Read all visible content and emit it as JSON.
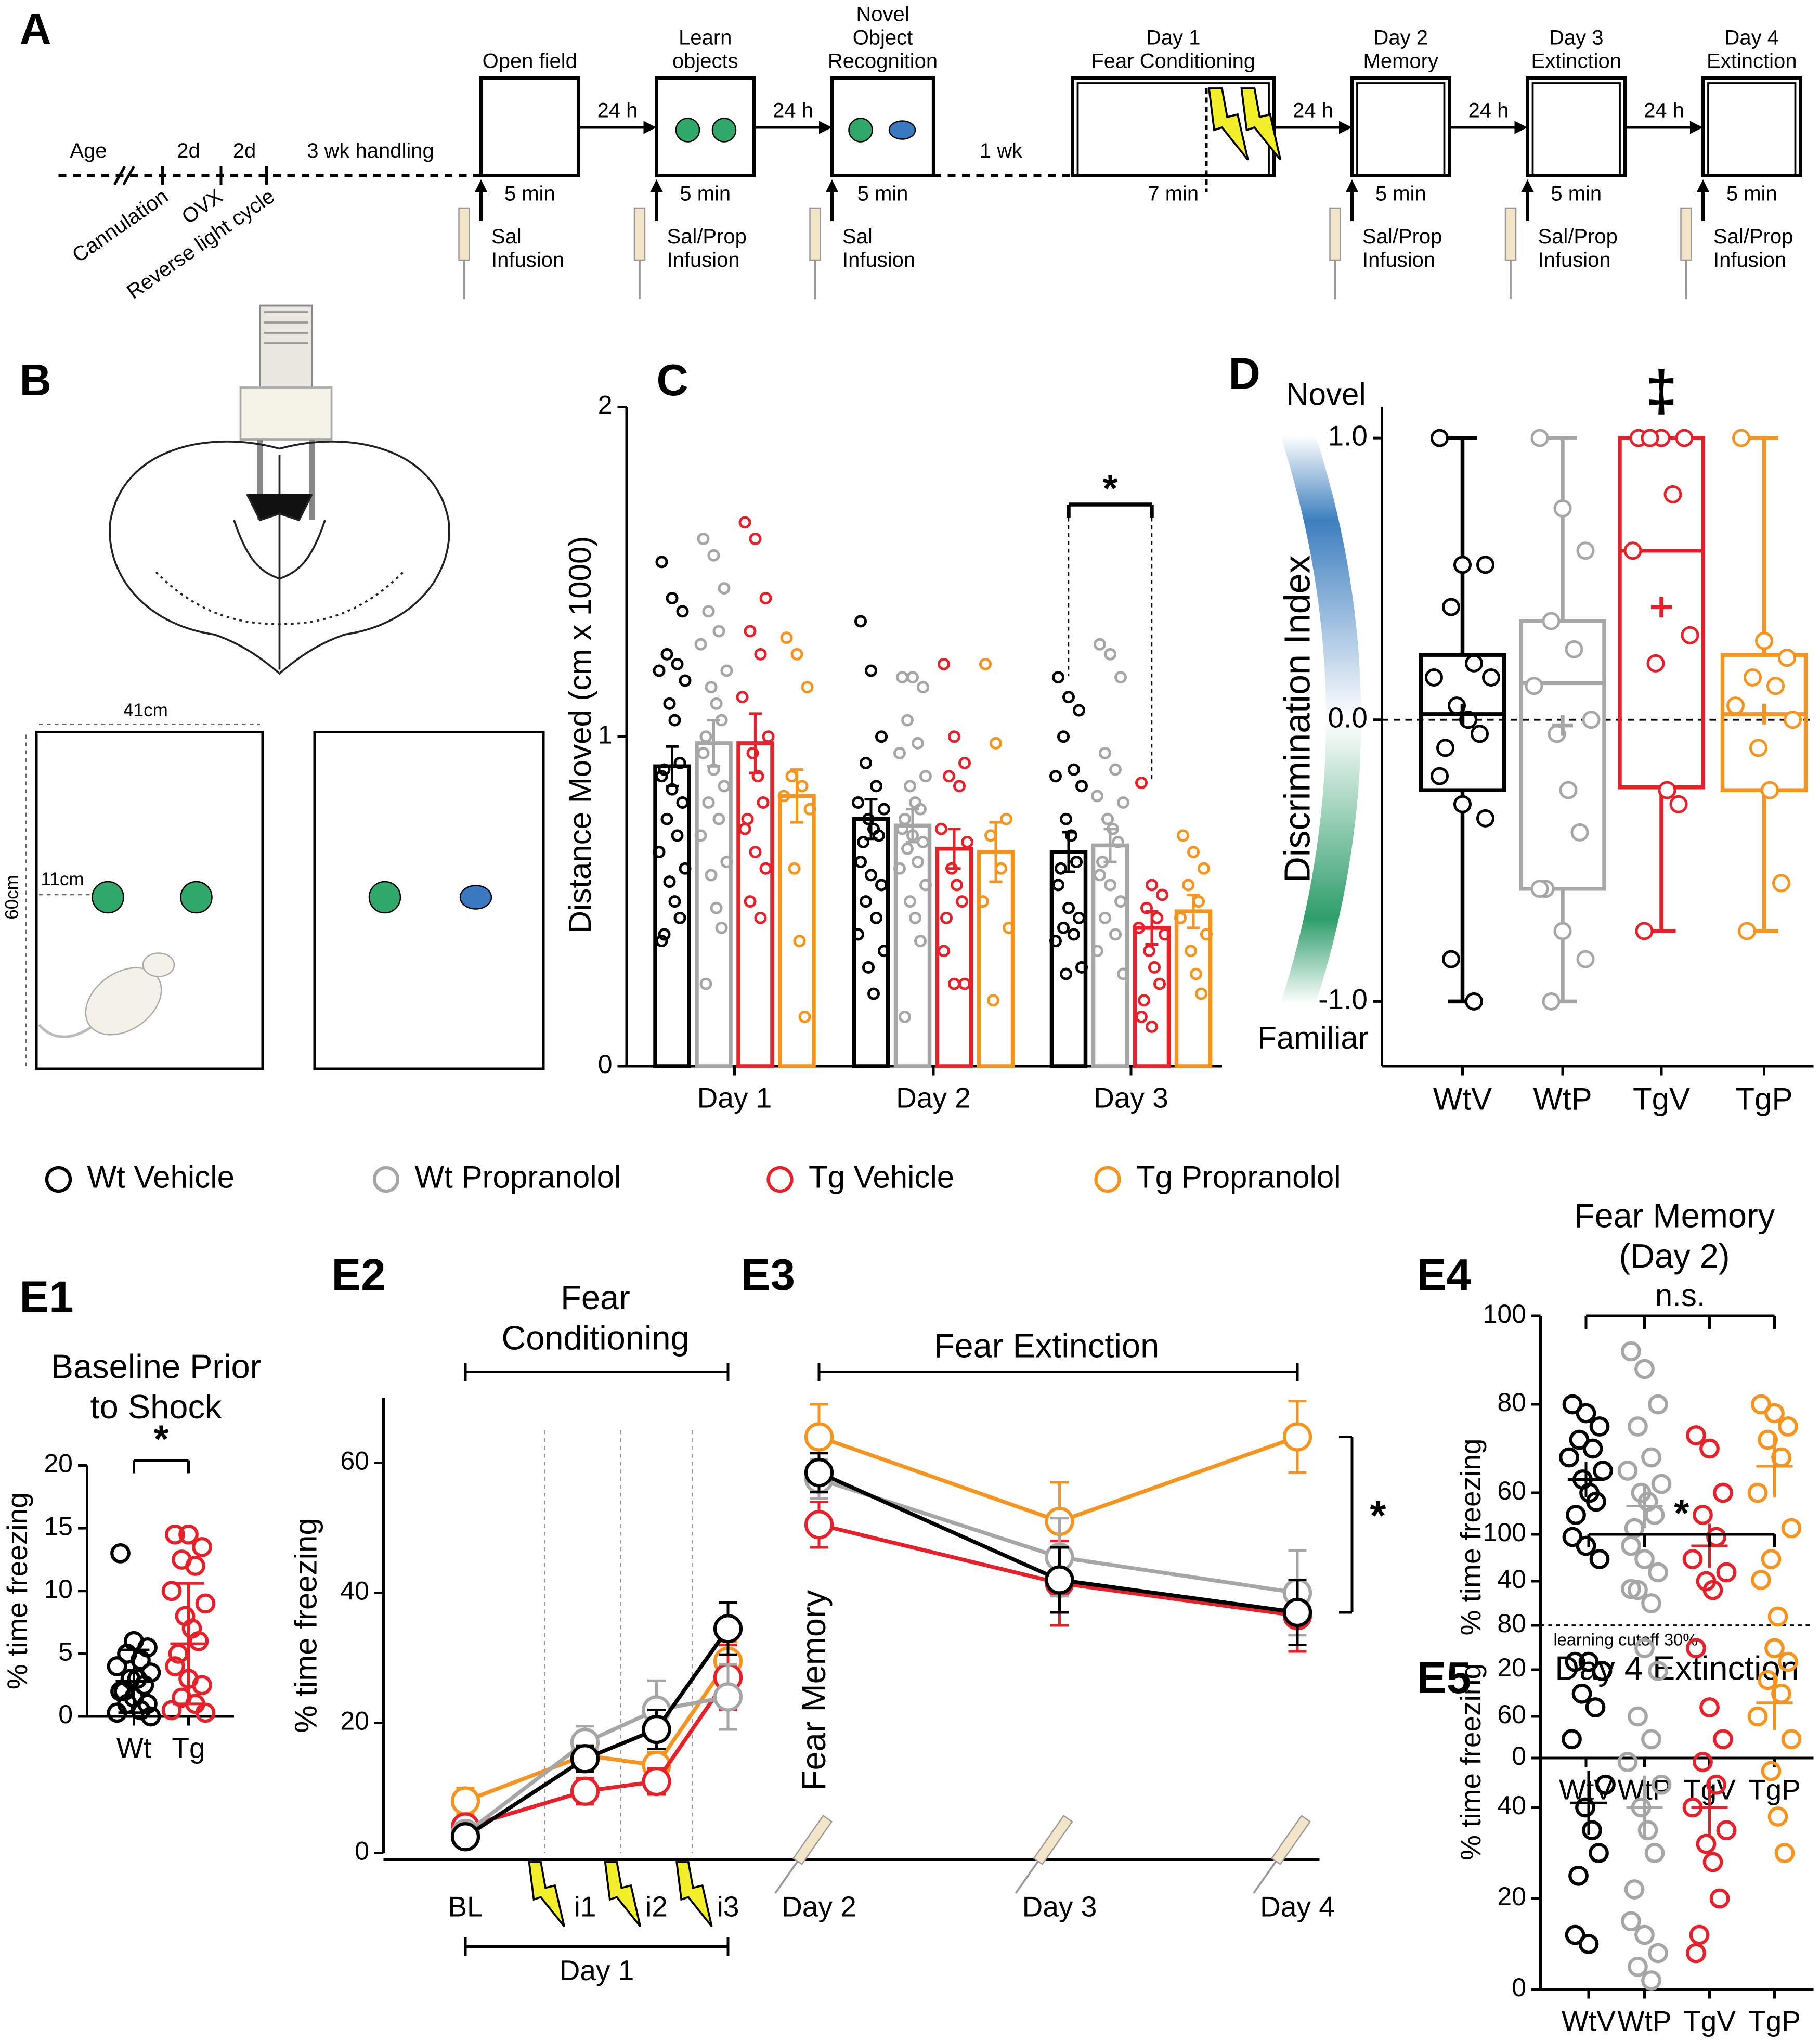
{
  "panel_labels": [
    "A",
    "B",
    "C",
    "D",
    "E1",
    "E2",
    "E3",
    "E4",
    "E5"
  ],
  "timeline": {
    "top_labels": [
      "Age",
      "2d",
      "2d",
      "3 wk handling",
      "1 wk"
    ],
    "rotated_labels": [
      "Cannulation",
      "OVX",
      "Reverse light cycle"
    ],
    "intervals": [
      "24 h",
      "24 h",
      "24 h",
      "24 h",
      "24 h"
    ],
    "boxes": [
      {
        "title": [
          "Open field"
        ],
        "duration": "5 min",
        "infusion": [
          "Sal",
          "Infusion"
        ]
      },
      {
        "title": [
          "Learn",
          "objects"
        ],
        "duration": "5 min",
        "infusion": [
          "Sal/Prop",
          "Infusion"
        ]
      },
      {
        "title": [
          "Novel",
          "Object",
          "Recognition"
        ],
        "duration": "5 min",
        "infusion": [
          "Sal",
          "Infusion"
        ]
      },
      {
        "title": [
          "Day 1",
          "Fear Conditioning"
        ],
        "duration": "7 min"
      },
      {
        "title": [
          "Day 2",
          "Memory"
        ],
        "duration": "5 min",
        "infusion": [
          "Sal/Prop",
          "Infusion"
        ]
      },
      {
        "title": [
          "Day 3",
          "Extinction"
        ],
        "duration": "5 min",
        "infusion": [
          "Sal/Prop",
          "Infusion"
        ]
      },
      {
        "title": [
          "Day 4",
          "Extinction"
        ],
        "duration": "5 min",
        "infusion": [
          "Sal/Prop",
          "Infusion"
        ]
      }
    ]
  },
  "arena": {
    "width": "41cm",
    "height": "60cm",
    "offset": "11cm"
  },
  "legend": [
    {
      "name": "Wt Vehicle",
      "color": "#000000"
    },
    {
      "name": "Wt Propranolol",
      "color": "#a6a6a6"
    },
    {
      "name": "Tg Vehicle",
      "color": "#e8202a"
    },
    {
      "name": "Tg Propranolol",
      "color": "#f7941d"
    }
  ],
  "chart_data": [
    {
      "type": "bar",
      "y_label": "Distance Moved (cm x 1000)",
      "categories": [
        "Day 1",
        "Day 2",
        "Day 3"
      ],
      "ylim": [
        0,
        2
      ],
      "yticks": [
        0,
        1,
        2
      ],
      "annotation": "*",
      "series": [
        {
          "color": "#000000",
          "values": [
            0.91,
            0.75,
            0.65
          ],
          "errors": [
            0.06,
            0.06,
            0.06
          ],
          "points": [
            [
              1.53,
              1.42,
              1.38,
              1.25,
              1.22,
              1.2,
              1.17,
              1.1,
              1.05,
              0.92,
              0.9,
              0.88,
              0.84,
              0.8,
              0.75,
              0.7,
              0.65,
              0.6,
              0.56,
              0.5,
              0.45,
              0.4,
              0.38
            ],
            [
              1.35,
              1.2,
              1.0,
              0.92,
              0.85,
              0.8,
              0.78,
              0.75,
              0.72,
              0.7,
              0.68,
              0.62,
              0.58,
              0.55,
              0.5,
              0.45,
              0.4,
              0.35,
              0.3,
              0.22
            ],
            [
              1.18,
              1.12,
              1.08,
              1.0,
              0.9,
              0.88,
              0.85,
              0.75,
              0.7,
              0.62,
              0.6,
              0.55,
              0.48,
              0.45,
              0.42,
              0.4,
              0.38,
              0.3,
              0.28
            ]
          ]
        },
        {
          "color": "#a6a6a6",
          "values": [
            0.98,
            0.73,
            0.67
          ],
          "errors": [
            0.07,
            0.05,
            0.05
          ],
          "points": [
            [
              1.6,
              1.55,
              1.45,
              1.38,
              1.32,
              1.28,
              1.2,
              1.15,
              1.1,
              1.05,
              1.0,
              0.95,
              0.9,
              0.85,
              0.8,
              0.75,
              0.7,
              0.62,
              0.58,
              0.48,
              0.42,
              0.25
            ],
            [
              1.18,
              1.18,
              1.15,
              1.05,
              0.98,
              0.95,
              0.88,
              0.85,
              0.8,
              0.78,
              0.75,
              0.72,
              0.7,
              0.68,
              0.66,
              0.62,
              0.6,
              0.55,
              0.5,
              0.45,
              0.38,
              0.15
            ],
            [
              1.28,
              1.25,
              1.18,
              0.95,
              0.9,
              0.82,
              0.8,
              0.75,
              0.72,
              0.68,
              0.62,
              0.58,
              0.55,
              0.5,
              0.45,
              0.4,
              0.35,
              0.28
            ]
          ]
        },
        {
          "color": "#e8202a",
          "values": [
            0.98,
            0.66,
            0.42
          ],
          "errors": [
            0.09,
            0.06,
            0.05
          ],
          "points": [
            [
              1.65,
              1.6,
              1.42,
              1.32,
              1.25,
              1.12,
              1.0,
              0.95,
              0.88,
              0.8,
              0.75,
              0.72,
              0.65,
              0.6,
              0.5,
              0.45
            ],
            [
              1.22,
              1.0,
              0.92,
              0.88,
              0.85,
              0.72,
              0.68,
              0.6,
              0.55,
              0.5,
              0.45,
              0.35,
              0.25,
              0.25
            ],
            [
              0.86,
              0.55,
              0.52,
              0.48,
              0.45,
              0.42,
              0.4,
              0.35,
              0.3,
              0.25,
              0.2,
              0.15,
              0.12
            ]
          ]
        },
        {
          "color": "#f7941d",
          "values": [
            0.82,
            0.65,
            0.47
          ],
          "errors": [
            0.08,
            0.09,
            0.05
          ],
          "points": [
            [
              1.3,
              1.25,
              1.15,
              0.88,
              0.85,
              0.82,
              0.78,
              0.6,
              0.38,
              0.15
            ],
            [
              1.22,
              0.98,
              0.75,
              0.7,
              0.6,
              0.5,
              0.42,
              0.2
            ],
            [
              0.7,
              0.65,
              0.6,
              0.55,
              0.5,
              0.45,
              0.4,
              0.35,
              0.28,
              0.22
            ]
          ]
        }
      ]
    },
    {
      "type": "box",
      "y_label": "Discrimination Index",
      "top_label": "Novel",
      "bottom_label": "Familiar",
      "annotation": "‡",
      "categories": [
        "WtV",
        "WtP",
        "TgV",
        "TgP"
      ],
      "ylim": [
        -1.23,
        1.11
      ],
      "yticks": [
        {
          "value": -1,
          "label": "-1.0"
        },
        {
          "value": 0,
          "label": "0.0"
        },
        {
          "value": 1,
          "label": "1.0"
        }
      ],
      "reference_line": 0,
      "boxes": [
        {
          "color": "#000000",
          "min": -1,
          "q1": -0.25,
          "median": 0.02,
          "q3": 0.23,
          "max": 1,
          "mean": 0.02,
          "points": [
            1.0,
            0.55,
            0.55,
            0.4,
            0.2,
            0.15,
            0.15,
            0.05,
            0.0,
            -0.05,
            -0.1,
            -0.2,
            -0.3,
            -0.35,
            -0.85,
            -1.0
          ]
        },
        {
          "color": "#a6a6a6",
          "min": -1,
          "q1": -0.6,
          "median": 0.13,
          "q3": 0.35,
          "max": 1,
          "mean": -0.02,
          "points": [
            1.0,
            0.75,
            0.6,
            0.35,
            0.25,
            0.12,
            0.0,
            -0.05,
            -0.25,
            -0.4,
            -0.6,
            -0.6,
            -0.75,
            -0.85,
            -1.0
          ]
        },
        {
          "color": "#e8202a",
          "min": -0.75,
          "q1": -0.24,
          "median": 0.6,
          "q3": 1,
          "max": 1,
          "mean": 0.4,
          "points": [
            1.0,
            1.0,
            1.0,
            1.0,
            0.8,
            0.6,
            0.3,
            0.2,
            -0.25,
            -0.3,
            -0.75
          ]
        },
        {
          "color": "#f7941d",
          "min": -0.75,
          "q1": -0.25,
          "median": 0.02,
          "q3": 0.23,
          "max": 1,
          "mean": 0.02,
          "points": [
            1.0,
            0.28,
            0.22,
            0.15,
            0.12,
            0.05,
            0.0,
            -0.1,
            -0.25,
            -0.58,
            -0.75
          ]
        }
      ]
    },
    {
      "type": "dot",
      "title": [
        "Baseline Prior",
        "to Shock"
      ],
      "y_label": "% time freezing",
      "annotation": "*",
      "categories": [
        "Wt",
        "Tg"
      ],
      "ylim": [
        0,
        20
      ],
      "yticks": [
        0,
        5,
        10,
        15,
        20
      ],
      "groups": [
        {
          "color": "#000000",
          "mean": 2.8,
          "error": 2.5,
          "points": [
            13,
            6,
            5.5,
            5,
            4.5,
            4,
            3.5,
            3,
            3,
            2.5,
            2,
            2,
            1.5,
            1,
            1,
            0.5,
            0.3,
            0
          ]
        },
        {
          "color": "#e8202a",
          "mean": 5.8,
          "error": 4.8,
          "points": [
            14.5,
            14.5,
            13.5,
            12.5,
            12,
            10,
            9,
            8,
            7,
            6,
            5,
            4,
            3,
            2.5,
            1.5,
            1,
            0.5,
            0.3
          ]
        }
      ]
    },
    {
      "type": "line",
      "title": [
        "Fear",
        "Conditioning"
      ],
      "y_label": "% time freezing",
      "x_group_label": "Day 1",
      "categories": [
        "BL",
        "i1",
        "i2",
        "i3"
      ],
      "ylim": [
        0,
        70
      ],
      "yticks": [
        0,
        20,
        40,
        60
      ],
      "series": [
        {
          "color": "#000000",
          "values": [
            2.5,
            14.5,
            19,
            34.5
          ],
          "errors": [
            0.5,
            2,
            3,
            4
          ]
        },
        {
          "color": "#a6a6a6",
          "values": [
            3,
            17,
            22,
            24
          ],
          "errors": [
            1,
            2.5,
            4.5,
            5
          ]
        },
        {
          "color": "#e8202a",
          "values": [
            4,
            9.5,
            11,
            27
          ],
          "errors": [
            1,
            2,
            2,
            5
          ]
        },
        {
          "color": "#f7941d",
          "values": [
            8,
            15,
            13.5,
            29.5
          ],
          "errors": [
            2,
            2,
            2,
            3
          ]
        }
      ]
    },
    {
      "type": "line",
      "title": [
        "Fear Extinction"
      ],
      "side_label": "Fear Memory",
      "annotation": "*",
      "categories": [
        "Day 2",
        "Day 3",
        "Day 4"
      ],
      "ylim": [
        0,
        70
      ],
      "series": [
        {
          "color": "#000000",
          "values": [
            58.5,
            42,
            37
          ],
          "errors": [
            3,
            5,
            5
          ]
        },
        {
          "color": "#a6a6a6",
          "values": [
            57.5,
            45.5,
            40
          ],
          "errors": [
            3,
            6,
            6.5
          ]
        },
        {
          "color": "#e8202a",
          "values": [
            50.5,
            41.5,
            36.5
          ],
          "errors": [
            3.5,
            6.5,
            5.5
          ]
        },
        {
          "color": "#f7941d",
          "values": [
            64,
            51,
            64
          ],
          "errors": [
            5,
            6,
            5.5
          ]
        }
      ]
    },
    {
      "type": "dot",
      "title": [
        "Fear Memory",
        "(Day 2)"
      ],
      "y_label": "% time freezing",
      "annotation": "n.s.",
      "cutoff": {
        "value": 30,
        "label": "learning cutoff 30%"
      },
      "categories": [
        "WtV",
        "WtP",
        "TgV",
        "TgP"
      ],
      "ylim": [
        0,
        100
      ],
      "yticks": [
        0,
        20,
        40,
        60,
        80,
        100
      ],
      "groups": [
        {
          "color": "#000000",
          "mean": 63,
          "error": 4,
          "points": [
            80,
            78,
            75,
            72,
            70,
            68,
            65,
            63,
            60,
            58,
            55,
            50,
            48,
            45
          ]
        },
        {
          "color": "#a6a6a6",
          "mean": 57,
          "error": 5,
          "points": [
            92,
            88,
            80,
            75,
            68,
            65,
            62,
            60,
            58,
            55,
            52,
            48,
            45,
            42,
            38,
            35
          ]
        },
        {
          "color": "#e8202a",
          "mean": 48,
          "error": 5,
          "points": [
            73,
            70,
            60,
            55,
            50,
            45,
            42,
            40,
            38
          ]
        },
        {
          "color": "#f7941d",
          "mean": 66,
          "error": 7,
          "points": [
            80,
            78,
            75,
            72,
            68,
            60,
            52,
            45,
            32
          ]
        }
      ]
    },
    {
      "type": "dot",
      "title": [
        "Day 4 Extinction"
      ],
      "y_label": "% time freezing",
      "annotation": "*",
      "categories": [
        "WtV",
        "WtP",
        "TgV",
        "TgP"
      ],
      "ylim": [
        0,
        100
      ],
      "yticks": [
        0,
        20,
        40,
        60,
        80,
        100
      ],
      "groups": [
        {
          "color": "#000000",
          "mean": 41,
          "error": 7,
          "points": [
            72,
            72,
            70,
            65,
            62,
            55,
            45,
            40,
            35,
            30,
            25,
            12,
            10
          ]
        },
        {
          "color": "#a6a6a6",
          "mean": 40,
          "error": 7,
          "points": [
            88,
            75,
            70,
            60,
            55,
            50,
            45,
            40,
            35,
            30,
            22,
            15,
            12,
            8,
            5,
            2
          ]
        },
        {
          "color": "#e8202a",
          "mean": 40,
          "error": 6,
          "points": [
            75,
            62,
            55,
            50,
            45,
            40,
            35,
            32,
            28,
            20,
            12,
            8
          ]
        },
        {
          "color": "#f7941d",
          "mean": 63,
          "error": 6,
          "points": [
            90,
            75,
            72,
            68,
            65,
            60,
            55,
            48,
            38,
            30
          ]
        }
      ]
    }
  ]
}
